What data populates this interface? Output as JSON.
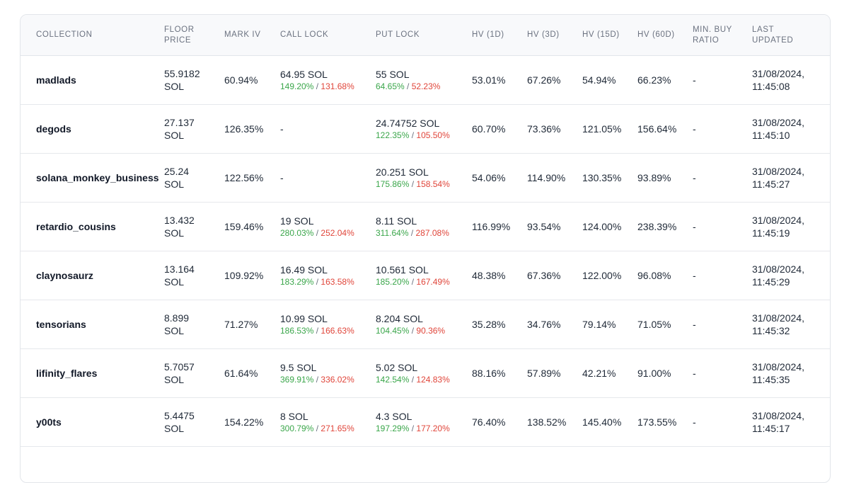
{
  "table": {
    "headers": {
      "collection": "COLLECTION",
      "floor_price_line1": "FLOOR",
      "floor_price_line2": "PRICE",
      "mark_iv": "MARK IV",
      "call_lock": "CALL LOCK",
      "put_lock": "PUT LOCK",
      "hv_1d": "HV (1D)",
      "hv_3d": "HV (3D)",
      "hv_15d": "HV (15D)",
      "hv_60d": "HV (60D)",
      "min_buy_ratio_line1": "MIN. BUY",
      "min_buy_ratio_line2": "RATIO",
      "last_updated_line1": "LAST",
      "last_updated_line2": "UPDATED"
    },
    "rows": [
      {
        "collection": "madlads",
        "floor_1": "55.9182",
        "floor_2": "SOL",
        "mark_iv": "60.94%",
        "call_lock": "64.95 SOL",
        "call_pos": "149.20%",
        "call_neg": "131.68%",
        "put_lock": "55 SOL",
        "put_pos": "64.65%",
        "put_neg": "52.23%",
        "hv_1d": "53.01%",
        "hv_3d": "67.26%",
        "hv_15d": "54.94%",
        "hv_60d": "66.23%",
        "min_buy_ratio": "-",
        "updated_1": "31/08/2024,",
        "updated_2": "11:45:08"
      },
      {
        "collection": "degods",
        "floor_1": "27.137",
        "floor_2": "SOL",
        "mark_iv": "126.35%",
        "call_lock": "-",
        "call_pos": "",
        "call_neg": "",
        "put_lock": "24.74752 SOL",
        "put_pos": "122.35%",
        "put_neg": "105.50%",
        "hv_1d": "60.70%",
        "hv_3d": "73.36%",
        "hv_15d": "121.05%",
        "hv_60d": "156.64%",
        "min_buy_ratio": "-",
        "updated_1": "31/08/2024,",
        "updated_2": "11:45:10"
      },
      {
        "collection": "solana_monkey_business",
        "floor_1": "25.24",
        "floor_2": "SOL",
        "mark_iv": "122.56%",
        "call_lock": "-",
        "call_pos": "",
        "call_neg": "",
        "put_lock": "20.251 SOL",
        "put_pos": "175.86%",
        "put_neg": "158.54%",
        "hv_1d": "54.06%",
        "hv_3d": "114.90%",
        "hv_15d": "130.35%",
        "hv_60d": "93.89%",
        "min_buy_ratio": "-",
        "updated_1": "31/08/2024,",
        "updated_2": "11:45:27"
      },
      {
        "collection": "retardio_cousins",
        "floor_1": "13.432",
        "floor_2": "SOL",
        "mark_iv": "159.46%",
        "call_lock": "19 SOL",
        "call_pos": "280.03%",
        "call_neg": "252.04%",
        "put_lock": "8.11 SOL",
        "put_pos": "311.64%",
        "put_neg": "287.08%",
        "hv_1d": "116.99%",
        "hv_3d": "93.54%",
        "hv_15d": "124.00%",
        "hv_60d": "238.39%",
        "min_buy_ratio": "-",
        "updated_1": "31/08/2024,",
        "updated_2": "11:45:19"
      },
      {
        "collection": "claynosaurz",
        "floor_1": "13.164",
        "floor_2": "SOL",
        "mark_iv": "109.92%",
        "call_lock": "16.49 SOL",
        "call_pos": "183.29%",
        "call_neg": "163.58%",
        "put_lock": "10.561 SOL",
        "put_pos": "185.20%",
        "put_neg": "167.49%",
        "hv_1d": "48.38%",
        "hv_3d": "67.36%",
        "hv_15d": "122.00%",
        "hv_60d": "96.08%",
        "min_buy_ratio": "-",
        "updated_1": "31/08/2024,",
        "updated_2": "11:45:29"
      },
      {
        "collection": "tensorians",
        "floor_1": "8.899",
        "floor_2": "SOL",
        "mark_iv": "71.27%",
        "call_lock": "10.99 SOL",
        "call_pos": "186.53%",
        "call_neg": "166.63%",
        "put_lock": "8.204 SOL",
        "put_pos": "104.45%",
        "put_neg": "90.36%",
        "hv_1d": "35.28%",
        "hv_3d": "34.76%",
        "hv_15d": "79.14%",
        "hv_60d": "71.05%",
        "min_buy_ratio": "-",
        "updated_1": "31/08/2024,",
        "updated_2": "11:45:32"
      },
      {
        "collection": "lifinity_flares",
        "floor_1": "5.7057",
        "floor_2": "SOL",
        "mark_iv": "61.64%",
        "call_lock": "9.5 SOL",
        "call_pos": "369.91%",
        "call_neg": "336.02%",
        "put_lock": "5.02 SOL",
        "put_pos": "142.54%",
        "put_neg": "124.83%",
        "hv_1d": "88.16%",
        "hv_3d": "57.89%",
        "hv_15d": "42.21%",
        "hv_60d": "91.00%",
        "min_buy_ratio": "-",
        "updated_1": "31/08/2024,",
        "updated_2": "11:45:35"
      },
      {
        "collection": "y00ts",
        "floor_1": "5.4475",
        "floor_2": "SOL",
        "mark_iv": "154.22%",
        "call_lock": "8 SOL",
        "call_pos": "300.79%",
        "call_neg": "271.65%",
        "put_lock": "4.3 SOL",
        "put_pos": "197.29%",
        "put_neg": "177.20%",
        "hv_1d": "76.40%",
        "hv_3d": "138.52%",
        "hv_15d": "145.40%",
        "hv_60d": "173.55%",
        "min_buy_ratio": "-",
        "updated_1": "31/08/2024,",
        "updated_2": "11:45:17"
      }
    ],
    "colors": {
      "positive": "#3aa64a",
      "negative": "#e0453a",
      "header_bg": "#f8f9fb"
    }
  }
}
